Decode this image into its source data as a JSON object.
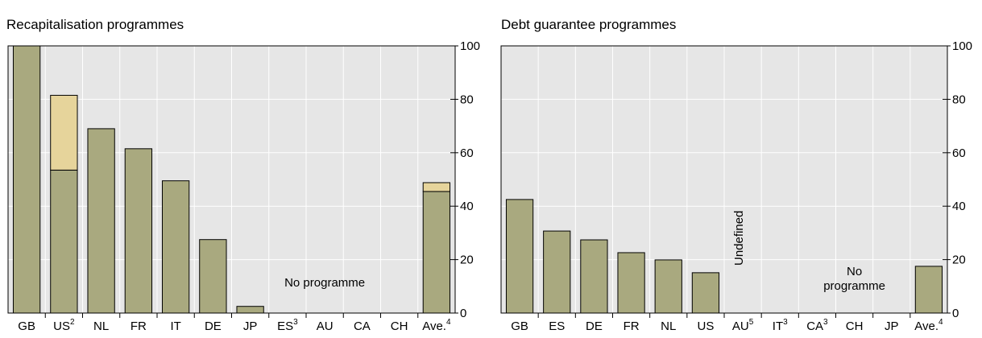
{
  "chart_data": [
    {
      "type": "bar",
      "stacked": true,
      "title": "Recapitalisation programmes",
      "categories": [
        "GB",
        "US",
        "NL",
        "FR",
        "IT",
        "DE",
        "JP",
        "ES",
        "AU",
        "CA",
        "CH",
        "Ave."
      ],
      "footnotes": [
        null,
        "2",
        null,
        null,
        null,
        null,
        null,
        "3",
        null,
        null,
        null,
        "4"
      ],
      "series": [
        {
          "color": "#a9a97f",
          "values": [
            100,
            53.5,
            69,
            61.5,
            49.5,
            27.5,
            2.5,
            null,
            null,
            null,
            null,
            45.5
          ]
        },
        {
          "color": "#e6d49b",
          "values": [
            null,
            28,
            null,
            null,
            null,
            null,
            null,
            null,
            null,
            null,
            null,
            3.3
          ]
        }
      ],
      "ylim": [
        0,
        100
      ],
      "yticks": [
        0,
        20,
        40,
        60,
        80,
        100
      ],
      "grid": true,
      "annotations": [
        "No programme"
      ]
    },
    {
      "type": "bar",
      "stacked": true,
      "title": "Debt guarantee programmes",
      "categories": [
        "GB",
        "ES",
        "DE",
        "FR",
        "NL",
        "US",
        "AU",
        "IT",
        "CA",
        "CH",
        "JP",
        "Ave."
      ],
      "footnotes": [
        null,
        null,
        null,
        null,
        null,
        null,
        "5",
        "3",
        "3",
        null,
        null,
        "4"
      ],
      "series": [
        {
          "color": "#a9a97f",
          "values": [
            42.5,
            30.7,
            27.4,
            22.6,
            19.9,
            15.1,
            null,
            null,
            null,
            null,
            null,
            17.5
          ]
        }
      ],
      "ylim": [
        0,
        100
      ],
      "yticks": [
        0,
        20,
        40,
        60,
        80,
        100
      ],
      "grid": true,
      "annotations": [
        "Undefined",
        [
          "No",
          "programme"
        ]
      ]
    }
  ]
}
